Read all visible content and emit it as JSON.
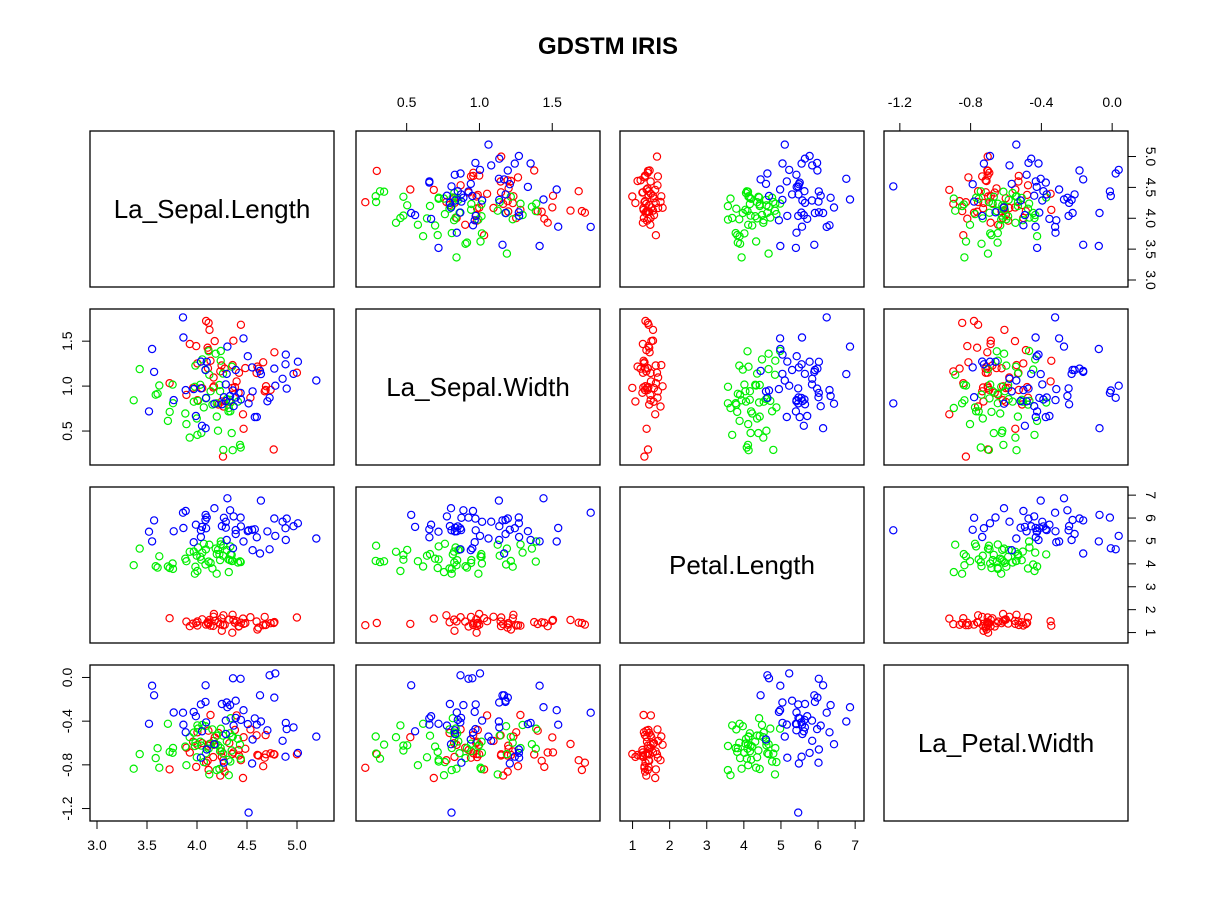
{
  "chart_data": {
    "type": "scatter",
    "title": "GDSTM IRIS",
    "variables": [
      {
        "label": "La_Sepal.Length",
        "range": [
          3.0,
          5.3
        ],
        "ticks": [
          3.0,
          3.5,
          4.0,
          4.5,
          5.0
        ]
      },
      {
        "label": "La_Sepal.Width",
        "range": [
          0.2,
          1.78
        ],
        "ticks": [
          0.5,
          1.0,
          1.5
        ]
      },
      {
        "label": "Petal.Length",
        "range": [
          0.85,
          7.05
        ],
        "ticks": [
          1,
          2,
          3,
          4,
          5,
          6,
          7
        ]
      },
      {
        "label": "La_Petal.Width",
        "range": [
          -1.25,
          0.05
        ],
        "ticks": [
          -1.2,
          -0.8,
          -0.4,
          0.0
        ]
      }
    ],
    "groups": [
      {
        "color": "#ff0000",
        "n": 50,
        "center": [
          4.35,
          1.1,
          1.46,
          -0.65
        ],
        "sd": [
          0.28,
          0.32,
          0.17,
          0.13
        ]
      },
      {
        "color": "#00ee00",
        "n": 50,
        "center": [
          4.1,
          0.85,
          4.26,
          -0.65
        ],
        "sd": [
          0.3,
          0.28,
          0.47,
          0.13
        ]
      },
      {
        "color": "#0000ff",
        "n": 50,
        "center": [
          4.4,
          1.05,
          5.55,
          -0.45
        ],
        "sd": [
          0.35,
          0.3,
          0.55,
          0.25
        ]
      }
    ],
    "grid": false,
    "legend": "none"
  }
}
